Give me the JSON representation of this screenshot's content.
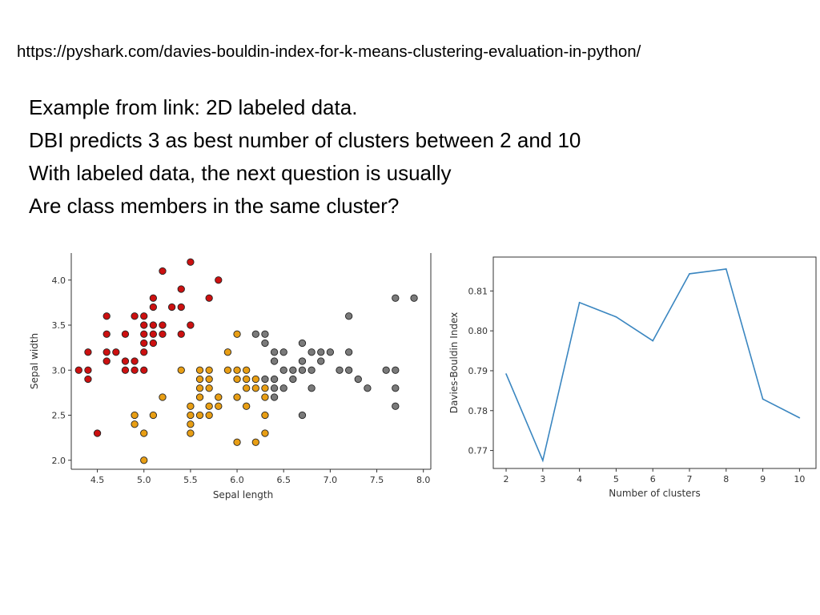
{
  "header": {
    "url": "https://pyshark.com/davies-bouldin-index-for-k-means-clustering-evaluation-in-python/"
  },
  "notes": [
    "Example from link: 2D labeled data.",
    "DBI predicts 3 as best number of clusters between 2 and 10",
    "With labeled data, the next question is usually",
    "Are class members in the same cluster?"
  ],
  "chart_data": [
    {
      "type": "scatter",
      "xlabel": "Sepal length",
      "ylabel": "Sepal width",
      "xlim": [
        4.22,
        8.08
      ],
      "ylim": [
        1.9,
        4.3
      ],
      "xticks": [
        "4.5",
        "5.0",
        "5.5",
        "6.0",
        "6.5",
        "7.0",
        "7.5",
        "8.0"
      ],
      "yticks": [
        "2.0",
        "2.5",
        "3.0",
        "3.5",
        "4.0"
      ],
      "grid": false,
      "colors": {
        "cluster_1": "#cc1010",
        "cluster_2": "#e89e14",
        "cluster_3": "#7a7a7a"
      },
      "series": [
        {
          "values": [
            [
              4.3,
              3.0
            ],
            [
              4.4,
              2.9
            ],
            [
              4.4,
              3.0
            ],
            [
              4.4,
              3.2
            ],
            [
              4.5,
              2.3
            ],
            [
              4.6,
              3.1
            ],
            [
              4.6,
              3.2
            ],
            [
              4.6,
              3.4
            ],
            [
              4.6,
              3.6
            ],
            [
              4.7,
              3.2
            ],
            [
              4.8,
              3.0
            ],
            [
              4.8,
              3.1
            ],
            [
              4.8,
              3.4
            ],
            [
              4.9,
              3.0
            ],
            [
              4.9,
              3.1
            ],
            [
              4.9,
              3.6
            ],
            [
              5.0,
              3.0
            ],
            [
              5.0,
              3.2
            ],
            [
              5.0,
              3.3
            ],
            [
              5.0,
              3.4
            ],
            [
              5.0,
              3.5
            ],
            [
              5.0,
              3.6
            ],
            [
              5.1,
              3.3
            ],
            [
              5.1,
              3.4
            ],
            [
              5.1,
              3.5
            ],
            [
              5.1,
              3.7
            ],
            [
              5.1,
              3.8
            ],
            [
              5.2,
              3.4
            ],
            [
              5.2,
              3.5
            ],
            [
              5.2,
              4.1
            ],
            [
              5.3,
              3.7
            ],
            [
              5.4,
              3.4
            ],
            [
              5.4,
              3.7
            ],
            [
              5.4,
              3.9
            ],
            [
              5.5,
              3.5
            ],
            [
              5.5,
              4.2
            ],
            [
              5.7,
              3.8
            ],
            [
              5.8,
              4.0
            ]
          ]
        },
        {
          "values": [
            [
              4.9,
              2.4
            ],
            [
              4.9,
              2.5
            ],
            [
              5.0,
              2.0
            ],
            [
              5.0,
              2.3
            ],
            [
              5.1,
              2.5
            ],
            [
              5.2,
              2.7
            ],
            [
              5.4,
              3.0
            ],
            [
              5.5,
              2.3
            ],
            [
              5.5,
              2.4
            ],
            [
              5.5,
              2.5
            ],
            [
              5.5,
              2.6
            ],
            [
              5.6,
              2.5
            ],
            [
              5.6,
              2.7
            ],
            [
              5.6,
              2.8
            ],
            [
              5.6,
              2.9
            ],
            [
              5.6,
              3.0
            ],
            [
              5.7,
              2.5
            ],
            [
              5.7,
              2.6
            ],
            [
              5.7,
              2.8
            ],
            [
              5.7,
              2.9
            ],
            [
              5.7,
              3.0
            ],
            [
              5.8,
              2.6
            ],
            [
              5.8,
              2.7
            ],
            [
              5.9,
              3.0
            ],
            [
              5.9,
              3.2
            ],
            [
              6.0,
              2.2
            ],
            [
              6.0,
              2.7
            ],
            [
              6.0,
              2.9
            ],
            [
              6.0,
              3.0
            ],
            [
              6.0,
              3.4
            ],
            [
              6.1,
              2.6
            ],
            [
              6.1,
              2.8
            ],
            [
              6.1,
              2.9
            ],
            [
              6.1,
              3.0
            ],
            [
              6.2,
              2.2
            ],
            [
              6.2,
              2.8
            ],
            [
              6.2,
              2.9
            ],
            [
              6.3,
              2.3
            ],
            [
              6.3,
              2.5
            ],
            [
              6.3,
              2.7
            ],
            [
              6.3,
              2.8
            ]
          ]
        },
        {
          "values": [
            [
              6.2,
              3.4
            ],
            [
              6.3,
              2.9
            ],
            [
              6.3,
              3.3
            ],
            [
              6.3,
              3.4
            ],
            [
              6.4,
              2.7
            ],
            [
              6.4,
              2.8
            ],
            [
              6.4,
              2.9
            ],
            [
              6.4,
              3.1
            ],
            [
              6.4,
              3.2
            ],
            [
              6.5,
              2.8
            ],
            [
              6.5,
              3.0
            ],
            [
              6.5,
              3.2
            ],
            [
              6.6,
              2.9
            ],
            [
              6.6,
              3.0
            ],
            [
              6.7,
              2.5
            ],
            [
              6.7,
              3.0
            ],
            [
              6.7,
              3.1
            ],
            [
              6.7,
              3.3
            ],
            [
              6.8,
              2.8
            ],
            [
              6.8,
              3.0
            ],
            [
              6.8,
              3.2
            ],
            [
              6.9,
              3.1
            ],
            [
              6.9,
              3.2
            ],
            [
              7.0,
              3.2
            ],
            [
              7.1,
              3.0
            ],
            [
              7.2,
              3.0
            ],
            [
              7.2,
              3.2
            ],
            [
              7.2,
              3.6
            ],
            [
              7.3,
              2.9
            ],
            [
              7.4,
              2.8
            ],
            [
              7.6,
              3.0
            ],
            [
              7.7,
              2.6
            ],
            [
              7.7,
              2.8
            ],
            [
              7.7,
              3.0
            ],
            [
              7.7,
              3.8
            ],
            [
              7.9,
              3.8
            ]
          ]
        }
      ]
    },
    {
      "type": "line",
      "xlabel": "Number of clusters",
      "ylabel": "Davies-Bouldin Index",
      "x": [
        2,
        3,
        4,
        5,
        6,
        7,
        8,
        9,
        10
      ],
      "y": [
        0.7892,
        0.7675,
        0.8071,
        0.8035,
        0.7975,
        0.8143,
        0.8155,
        0.7829,
        0.7782
      ],
      "xlim": [
        1.65,
        10.45
      ],
      "ylim": [
        0.7655,
        0.8185
      ],
      "xticks": [
        "2",
        "3",
        "4",
        "5",
        "6",
        "7",
        "8",
        "9",
        "10"
      ],
      "yticks": [
        "0.77",
        "0.78",
        "0.79",
        "0.80",
        "0.81"
      ],
      "line_color": "#3a86c0",
      "grid": false
    }
  ]
}
